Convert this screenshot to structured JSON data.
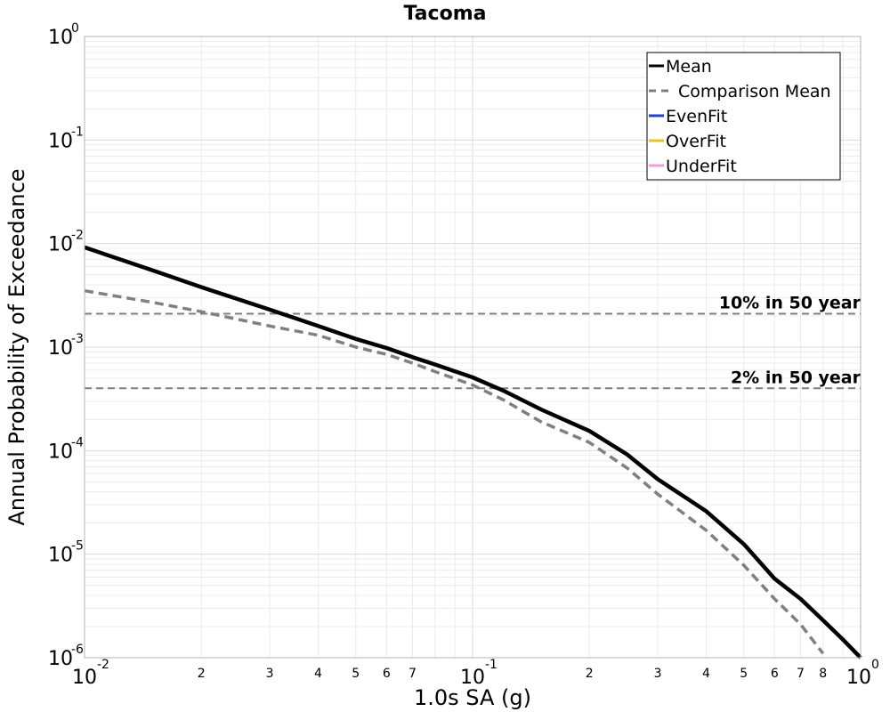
{
  "chart_data": {
    "type": "line",
    "title": "Tacoma",
    "xlabel": "1.0s SA (g)",
    "ylabel": "Annual Probability of Exceedance",
    "xscale": "log",
    "yscale": "log",
    "xlim": [
      0.01,
      1.0
    ],
    "ylim": [
      1e-06,
      1.0
    ],
    "grid": true,
    "legend_position": "top-right",
    "x_major_ticks": [
      {
        "value": 0.01,
        "base": "10",
        "exp": "-2"
      },
      {
        "value": 0.1,
        "base": "10",
        "exp": "-1"
      },
      {
        "value": 1.0,
        "base": "10",
        "exp": "0"
      }
    ],
    "x_minor_ticks": [
      {
        "value": 0.02,
        "label": "2"
      },
      {
        "value": 0.03,
        "label": "3"
      },
      {
        "value": 0.04,
        "label": "4"
      },
      {
        "value": 0.05,
        "label": "5"
      },
      {
        "value": 0.06,
        "label": "6"
      },
      {
        "value": 0.07,
        "label": "7"
      },
      {
        "value": 0.2,
        "label": "2"
      },
      {
        "value": 0.3,
        "label": "3"
      },
      {
        "value": 0.4,
        "label": "4"
      },
      {
        "value": 0.5,
        "label": "5"
      },
      {
        "value": 0.6,
        "label": "6"
      },
      {
        "value": 0.7,
        "label": "7"
      },
      {
        "value": 0.8,
        "label": "8"
      }
    ],
    "y_major_ticks": [
      {
        "value": 1.0,
        "base": "10",
        "exp": "0"
      },
      {
        "value": 0.1,
        "base": "10",
        "exp": "-1"
      },
      {
        "value": 0.01,
        "base": "10",
        "exp": "-2"
      },
      {
        "value": 0.001,
        "base": "10",
        "exp": "-3"
      },
      {
        "value": 0.0001,
        "base": "10",
        "exp": "-4"
      },
      {
        "value": 1e-05,
        "base": "10",
        "exp": "-5"
      },
      {
        "value": 1e-06,
        "base": "10",
        "exp": "-6"
      }
    ],
    "series": [
      {
        "name": "Mean",
        "color": "#000000",
        "style": "solid",
        "x": [
          0.01,
          0.015,
          0.02,
          0.03,
          0.04,
          0.05,
          0.06,
          0.07,
          0.08,
          0.1,
          0.12,
          0.15,
          0.2,
          0.25,
          0.3,
          0.4,
          0.5,
          0.6,
          0.7,
          0.8,
          0.9,
          1.0
        ],
        "y": [
          0.0092,
          0.0055,
          0.0038,
          0.0023,
          0.0016,
          0.0012,
          0.00098,
          0.0008,
          0.00068,
          0.00051,
          0.00038,
          0.00025,
          0.000155,
          9.2e-05,
          5.3e-05,
          2.6e-05,
          1.25e-05,
          5.8e-06,
          3.7e-06,
          2.3e-06,
          1.5e-06,
          1e-06
        ]
      },
      {
        "name": "Comparison Mean",
        "color": "#808080",
        "style": "dashed",
        "x": [
          0.01,
          0.015,
          0.02,
          0.03,
          0.04,
          0.05,
          0.06,
          0.07,
          0.08,
          0.1,
          0.12,
          0.15,
          0.2,
          0.25,
          0.3,
          0.4,
          0.5,
          0.6,
          0.7,
          0.8
        ],
        "y": [
          0.0035,
          0.0027,
          0.0022,
          0.0016,
          0.0013,
          0.001,
          0.00085,
          0.0007,
          0.00058,
          0.00043,
          0.00031,
          0.00019,
          0.00012,
          6.8e-05,
          3.8e-05,
          1.7e-05,
          7.8e-06,
          3.7e-06,
          2.1e-06,
          1.1e-06
        ]
      },
      {
        "name": "EvenFit",
        "color": "#1f3fe0",
        "style": "solid",
        "x": [],
        "y": []
      },
      {
        "name": "OverFit",
        "color": "#e6c619",
        "style": "solid",
        "x": [],
        "y": []
      },
      {
        "name": "UnderFit",
        "color": "#f09ae0",
        "style": "solid",
        "x": [],
        "y": []
      }
    ],
    "reference_lines": [
      {
        "y": 0.0021,
        "label": "10% in 50 year"
      },
      {
        "y": 0.0004,
        "label": "2% in 50 year"
      }
    ]
  }
}
